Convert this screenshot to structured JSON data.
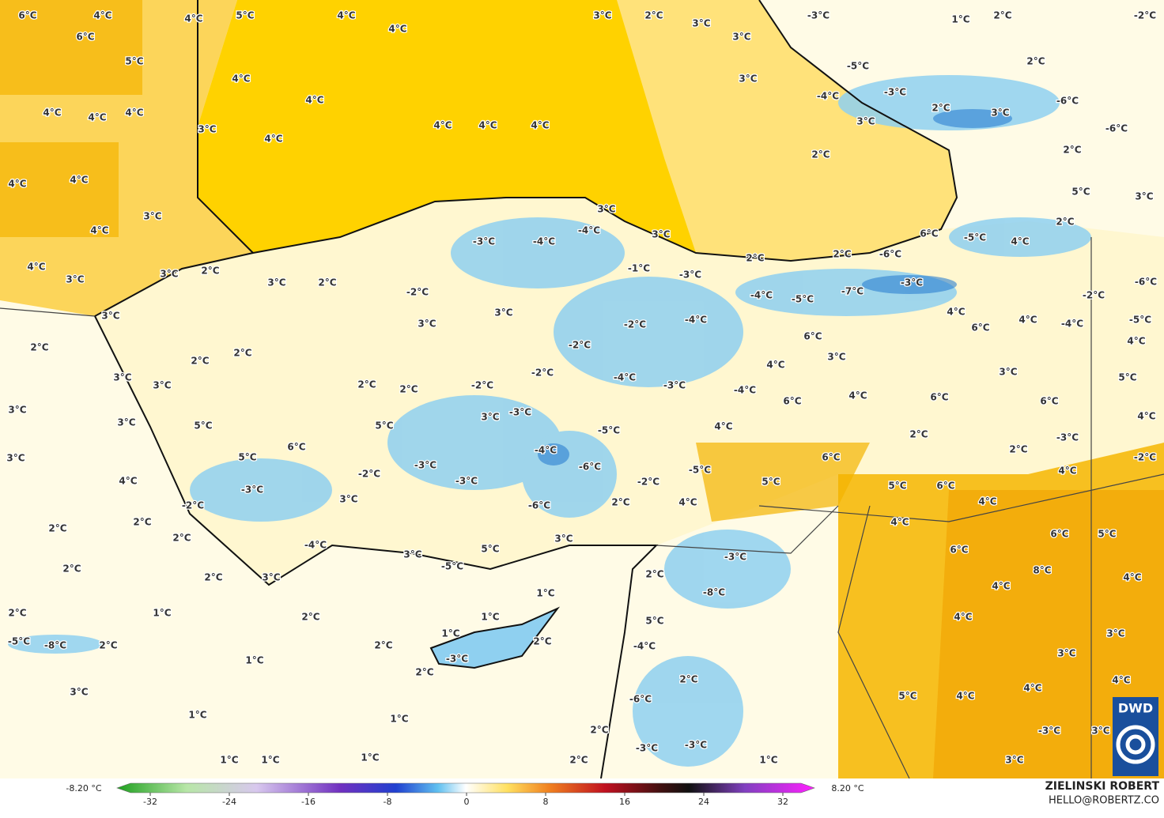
{
  "map": {
    "labels": [
      "6°C",
      "4°C",
      "4°C",
      "5°C",
      "4°C",
      "4°C",
      "6°C",
      "5°C",
      "4°C",
      "4°C",
      "3°C",
      "4°C",
      "4°C",
      "4°C",
      "4°C",
      "4°C",
      "4°C",
      "4°C",
      "4°C",
      "4°C",
      "3°C",
      "4°C",
      "4°C",
      "3°C",
      "3°C",
      "2°C",
      "3°C",
      "2°C",
      "3°C",
      "2°C",
      "3°C",
      "3°C",
      "3°C",
      "3°C",
      "3°C",
      "4°C",
      "5°C",
      "2°C",
      "2°C",
      "5°C",
      "6°C",
      "5°C",
      "3°C",
      "-2°C",
      "3°C",
      "2°C",
      "2°C",
      "-2°C",
      "3°C",
      "-3°C",
      "-2°C",
      "-2°C",
      "-4°C",
      "-3°C",
      "-2°C",
      "-4°C",
      "-1°C",
      "-3°C",
      "-3°C",
      "-4°C",
      "-4°C",
      "3°C",
      "3°C",
      "-3°C",
      "-2°C",
      "3°C",
      "-3°C",
      "-3°C",
      "-4°C",
      "-6°C",
      "-5°C",
      "-2°C",
      "-6°C",
      "2°C",
      "4°C",
      "-5°C",
      "4°C",
      "-4°C",
      "5°C",
      "-2°C",
      "2°C",
      "2°C",
      "2°C",
      "-4°C",
      "3°C",
      "3°C",
      "5°C",
      "-5°C",
      "3°C",
      "2°C",
      "2°C",
      "1°C",
      "2°C",
      "-5°C",
      "-8°C",
      "2°C",
      "2°C",
      "1°C",
      "1°C",
      "1°C",
      "2°C",
      "-3°C",
      "2°C",
      "1°C",
      "2°C",
      "3°C",
      "1°C",
      "1°C",
      "1°C",
      "1°C",
      "1°C",
      "2°C",
      "2°C",
      "-6°C",
      "-3°C",
      "-4°C",
      "5°C",
      "2°C",
      "-3°C",
      "-8°C",
      "2°C",
      "-3°C",
      "1°C",
      "3°C",
      "2°C",
      "3°C",
      "3°C",
      "-3°C",
      "1°C",
      "2°C",
      "-2°C",
      "-5°C",
      "2°C",
      "3°C",
      "-4°C",
      "-3°C",
      "2°C",
      "-6°C",
      "3°C",
      "3°C",
      "-6°C",
      "2°C",
      "2°C",
      "5°C",
      "3°C",
      "2°C",
      "6°C",
      "-5°C",
      "4°C",
      "2°C",
      "2°C",
      "-6°C",
      "-4°C",
      "-5°C",
      "-7°C",
      "-3°C",
      "-6°C",
      "-2°C",
      "4°C",
      "6°C",
      "4°C",
      "-4°C",
      "-5°C",
      "6°C",
      "3°C",
      "4°C",
      "4°C",
      "3°C",
      "5°C",
      "4°C",
      "6°C",
      "6°C",
      "6°C",
      "4°C",
      "2°C",
      "-3°C",
      "2°C",
      "6°C",
      "-2°C",
      "4°C",
      "5°C",
      "6°C",
      "4°C",
      "4°C",
      "6°C",
      "5°C",
      "6°C",
      "8°C",
      "4°C",
      "4°C",
      "4°C",
      "3°C",
      "3°C",
      "4°C",
      "5°C",
      "4°C",
      "4°C",
      "-3°C",
      "3°C",
      "3°C"
    ]
  },
  "colorbar": {
    "min_label": "-8.20 °C",
    "max_label": "8.20 °C",
    "range": [
      -32,
      32
    ],
    "ticks": [
      -32,
      -24,
      -16,
      -8,
      0,
      8,
      16,
      24,
      32
    ]
  },
  "credit": {
    "author": "ZIELINSKI ROBERT",
    "contact": "HELLO@ROBERTZ.CO",
    "logo": "DWD"
  }
}
